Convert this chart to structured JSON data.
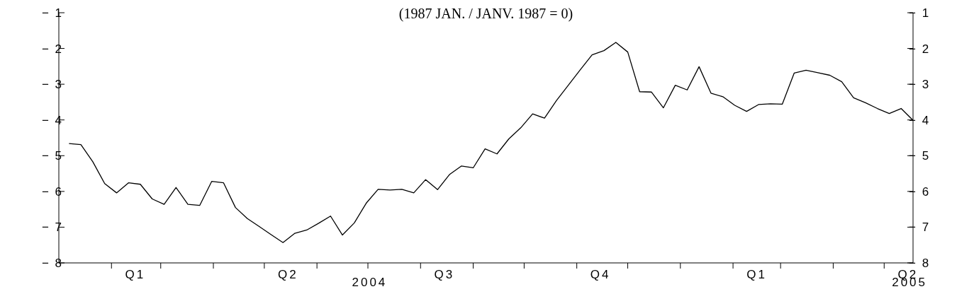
{
  "chart_data": {
    "type": "line",
    "title": "(1987 JAN. / JANV. 1987 = 0)",
    "x": [
      "2004-01-07",
      "2004-01-14",
      "2004-01-21",
      "2004-01-28",
      "2004-02-04",
      "2004-02-11",
      "2004-02-18",
      "2004-02-25",
      "2004-03-03",
      "2004-03-10",
      "2004-03-17",
      "2004-03-24",
      "2004-03-31",
      "2004-04-07",
      "2004-04-14",
      "2004-04-21",
      "2004-04-28",
      "2004-05-05",
      "2004-05-12",
      "2004-05-19",
      "2004-05-26",
      "2004-06-02",
      "2004-06-09",
      "2004-06-16",
      "2004-06-23",
      "2004-06-30",
      "2004-07-07",
      "2004-07-14",
      "2004-07-21",
      "2004-07-28",
      "2004-08-04",
      "2004-08-11",
      "2004-08-18",
      "2004-08-25",
      "2004-09-01",
      "2004-09-08",
      "2004-09-15",
      "2004-09-22",
      "2004-09-29",
      "2004-10-06",
      "2004-10-13",
      "2004-10-20",
      "2004-10-27",
      "2004-11-03",
      "2004-11-10",
      "2004-11-17",
      "2004-11-24",
      "2004-12-01",
      "2004-12-08",
      "2004-12-15",
      "2004-12-22",
      "2004-12-29",
      "2005-01-05",
      "2005-01-12",
      "2005-01-19",
      "2005-01-26",
      "2005-02-02",
      "2005-02-09",
      "2005-02-16",
      "2005-02-23",
      "2005-03-02",
      "2005-03-09",
      "2005-03-16",
      "2005-03-23",
      "2005-03-30",
      "2005-04-06",
      "2005-04-13",
      "2005-04-20",
      "2005-04-27",
      "2005-05-04",
      "2005-05-11",
      "2005-05-18"
    ],
    "series": [
      {
        "color": "#000000",
        "values": [
          -4.66,
          -4.69,
          -5.17,
          -5.78,
          -6.04,
          -5.76,
          -5.8,
          -6.21,
          -6.36,
          -5.89,
          -6.36,
          -6.39,
          -5.72,
          -5.76,
          -6.45,
          -6.76,
          -6.98,
          -7.21,
          -7.43,
          -7.17,
          -7.08,
          -6.89,
          -6.69,
          -7.22,
          -6.88,
          -6.33,
          -5.94,
          -5.96,
          -5.94,
          -6.04,
          -5.67,
          -5.95,
          -5.53,
          -5.29,
          -5.34,
          -4.81,
          -4.95,
          -4.53,
          -4.22,
          -3.83,
          -3.95,
          -3.46,
          -3.03,
          -2.6,
          -2.18,
          -2.06,
          -1.83,
          -2.1,
          -3.21,
          -3.22,
          -3.66,
          -3.03,
          -3.16,
          -2.51,
          -3.25,
          -3.35,
          -3.59,
          -3.76,
          -3.57,
          -3.55,
          -3.56,
          -2.69,
          -2.61,
          -2.68,
          -2.75,
          -2.93,
          -3.38,
          -3.52,
          -3.68,
          -3.82,
          -3.68,
          -4.01
        ]
      }
    ],
    "xlim": [
      "2004-01-01",
      "2005-05-18"
    ],
    "xticks": [
      {
        "value": "2004-02-01",
        "label": null
      },
      {
        "value": "2004-02-15",
        "label": "Q1"
      },
      {
        "value": "2004-03-01",
        "label": null
      },
      {
        "value": "2004-04-01",
        "label": null
      },
      {
        "value": "2004-05-01",
        "label": null
      },
      {
        "value": "2004-05-15",
        "label": "Q2"
      },
      {
        "value": "2004-06-01",
        "label": null
      },
      {
        "value": "2004-07-01",
        "label": null
      },
      {
        "value": "2004-08-01",
        "label": null
      },
      {
        "value": "2004-08-15",
        "label": "Q3"
      },
      {
        "value": "2004-09-01",
        "label": null
      },
      {
        "value": "2004-10-01",
        "label": null
      },
      {
        "value": "2004-11-01",
        "label": null
      },
      {
        "value": "2004-11-15",
        "label": "Q4"
      },
      {
        "value": "2004-12-01",
        "label": null
      },
      {
        "value": "2005-01-01",
        "label": null
      },
      {
        "value": "2005-02-01",
        "label": null
      },
      {
        "value": "2005-02-15",
        "label": "Q1"
      },
      {
        "value": "2005-03-01",
        "label": null
      },
      {
        "value": "2005-04-01",
        "label": null
      },
      {
        "value": "2005-05-01",
        "label": null
      },
      {
        "value": "2005-05-15",
        "label": "Q2"
      }
    ],
    "annotations": [
      "2004",
      "2005"
    ],
    "ylim": [
      -8,
      -1
    ],
    "yticks": [
      -8,
      -7,
      -6,
      -5,
      -4,
      -3,
      -2,
      -1
    ],
    "y2lim": [
      -8,
      -1
    ],
    "y2ticks": [
      -8,
      -7,
      -6,
      -5,
      -4,
      -3,
      -2,
      -1
    ],
    "grid": false,
    "marker": "none",
    "line_style": "solid"
  }
}
